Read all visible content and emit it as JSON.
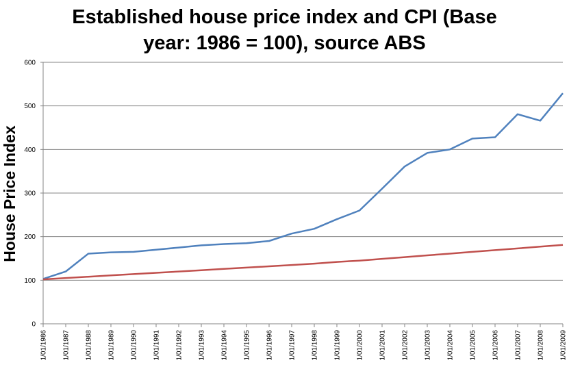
{
  "chart_data": {
    "type": "line",
    "title_lines": [
      "Established house price index and CPI (Base",
      "year: 1986 = 100), source ABS"
    ],
    "xlabel": "",
    "ylabel": "House Price Index",
    "ylim": [
      0,
      600
    ],
    "yticks": [
      0,
      100,
      200,
      300,
      400,
      500,
      600
    ],
    "grid": true,
    "legend": "none",
    "categories": [
      "1/01/1986",
      "1/01/1987",
      "1/01/1988",
      "1/01/1989",
      "1/01/1990",
      "1/01/1991",
      "1/01/1992",
      "1/01/1993",
      "1/01/1994",
      "1/01/1995",
      "1/01/1996",
      "1/01/1997",
      "1/01/1998",
      "1/01/1999",
      "1/01/2000",
      "1/01/2001",
      "1/01/2002",
      "1/01/2003",
      "1/01/2004",
      "1/01/2005",
      "1/01/2006",
      "1/01/2007",
      "1/01/2008",
      "1/01/2009"
    ],
    "series": [
      {
        "color": "#4f81bd",
        "values": [
          103,
          120,
          161,
          164,
          165,
          170,
          175,
          180,
          183,
          185,
          190,
          207,
          218,
          240,
          260,
          310,
          361,
          392,
          400,
          425,
          428,
          481,
          466,
          529
        ]
      },
      {
        "color": "#c0504d",
        "values": [
          102,
          105,
          108,
          111,
          114,
          117,
          120,
          123,
          126,
          129,
          132,
          135,
          138,
          142,
          145,
          149,
          153,
          157,
          161,
          165,
          169,
          173,
          177,
          181
        ]
      }
    ]
  }
}
